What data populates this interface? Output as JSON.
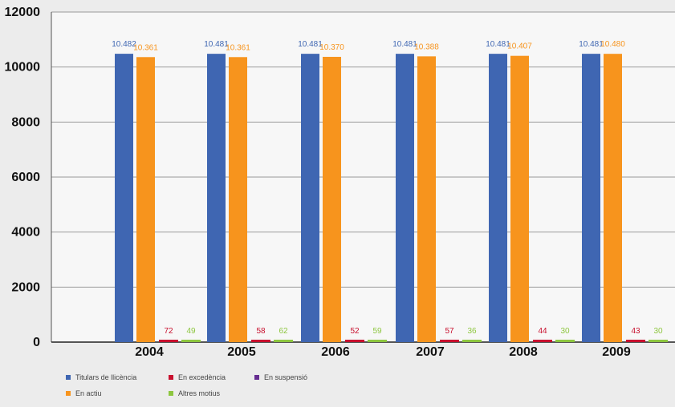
{
  "chart_data": {
    "type": "bar",
    "categories": [
      "2004",
      "2005",
      "2006",
      "2007",
      "2008",
      "2009"
    ],
    "series": [
      {
        "name": "Titulars de llicència",
        "color": "#3f66b2",
        "values": [
          10482,
          10481,
          10481,
          10481,
          10481,
          10481
        ],
        "labels": [
          "10.482",
          "10.481",
          "10.481",
          "10.481",
          "10.481",
          "10.481"
        ]
      },
      {
        "name": "En actiu",
        "color": "#f7941d",
        "values": [
          10361,
          10361,
          10370,
          10388,
          10407,
          10480
        ],
        "labels": [
          "10.361",
          "10.361",
          "10.370",
          "10.388",
          "10.407",
          "10.480"
        ]
      },
      {
        "name": "En excedència",
        "color": "#c8102e",
        "values": [
          72,
          58,
          52,
          57,
          44,
          43
        ],
        "labels": [
          "72",
          "58",
          "52",
          "57",
          "44",
          "43"
        ]
      },
      {
        "name": "Altres motius",
        "color": "#8dc63f",
        "values": [
          49,
          62,
          59,
          36,
          30,
          30
        ],
        "labels": [
          "49",
          "62",
          "59",
          "36",
          "30",
          "30"
        ]
      },
      {
        "name": "En suspensió",
        "color": "#662d91",
        "values": [
          0,
          0,
          0,
          0,
          0,
          0
        ],
        "labels": []
      }
    ],
    "yticks": [
      "0",
      "2000",
      "4000",
      "6000",
      "8000",
      "10000",
      "12000"
    ],
    "ylim": [
      0,
      12000
    ],
    "grid": true,
    "legend_position": "bottom-left"
  },
  "legend": {
    "items": [
      {
        "name": "Titulars de llicència",
        "color": "#3f66b2"
      },
      {
        "name": "En excedència",
        "color": "#c8102e"
      },
      {
        "name": "En suspensió",
        "color": "#662d91"
      },
      {
        "name": "En actiu",
        "color": "#f7941d"
      },
      {
        "name": "Altres motius",
        "color": "#8dc63f"
      }
    ]
  }
}
